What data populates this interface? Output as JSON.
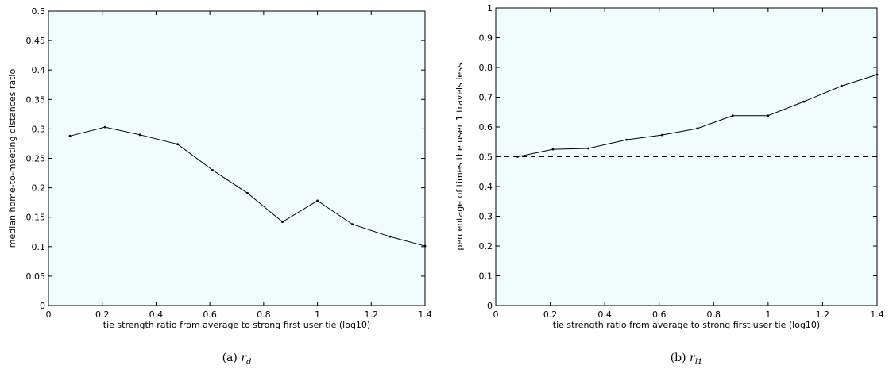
{
  "chart_data": [
    {
      "type": "line",
      "caption_prefix": "(a)",
      "caption_var": "r",
      "caption_sub": "d",
      "xlabel": "tie strength ratio from average to strong first user tie (log10)",
      "ylabel": "median home-to-meeting distances ratio",
      "xlim": [
        0,
        1.4
      ],
      "ylim": [
        0,
        0.5
      ],
      "xticks": [
        "0",
        "0.2",
        "0.4",
        "0.6",
        "0.8",
        "1",
        "1.2",
        "1.4"
      ],
      "yticks": [
        "0",
        "0.05",
        "0.1",
        "0.15",
        "0.2",
        "0.25",
        "0.3",
        "0.35",
        "0.4",
        "0.45",
        "0.5"
      ],
      "reference_line": 0.5,
      "grid": false,
      "series": [
        {
          "x": [
            0.08,
            0.21,
            0.34,
            0.48,
            0.61,
            0.74,
            0.87,
            1.0,
            1.13,
            1.27,
            1.4
          ],
          "y": [
            0.288,
            0.303,
            0.29,
            0.274,
            0.23,
            0.191,
            0.142,
            0.178,
            0.138,
            0.117,
            0.101
          ]
        }
      ]
    },
    {
      "type": "line",
      "caption_prefix": "(b)",
      "caption_var": "r",
      "caption_sub": "l1",
      "xlabel": "tie strength ratio from average to strong first user tie (log10)",
      "ylabel": "percentage of times the user 1 travels less",
      "xlim": [
        0,
        1.4
      ],
      "ylim": [
        0,
        1
      ],
      "xticks": [
        "0",
        "0.2",
        "0.4",
        "0.6",
        "0.8",
        "1",
        "1.2",
        "1.4"
      ],
      "yticks": [
        "0",
        "0.1",
        "0.2",
        "0.3",
        "0.4",
        "0.5",
        "0.6",
        "0.7",
        "0.8",
        "0.9",
        "1"
      ],
      "reference_line": 0.5,
      "grid": false,
      "series": [
        {
          "x": [
            0.08,
            0.21,
            0.34,
            0.48,
            0.61,
            0.74,
            0.87,
            1.0,
            1.13,
            1.27,
            1.4
          ],
          "y": [
            0.5,
            0.525,
            0.528,
            0.557,
            0.573,
            0.595,
            0.638,
            0.638,
            0.685,
            0.738,
            0.776
          ]
        }
      ]
    }
  ],
  "colors": {
    "plot_background": "#effdfd",
    "line": "#000000",
    "reference_line": "#000000"
  }
}
